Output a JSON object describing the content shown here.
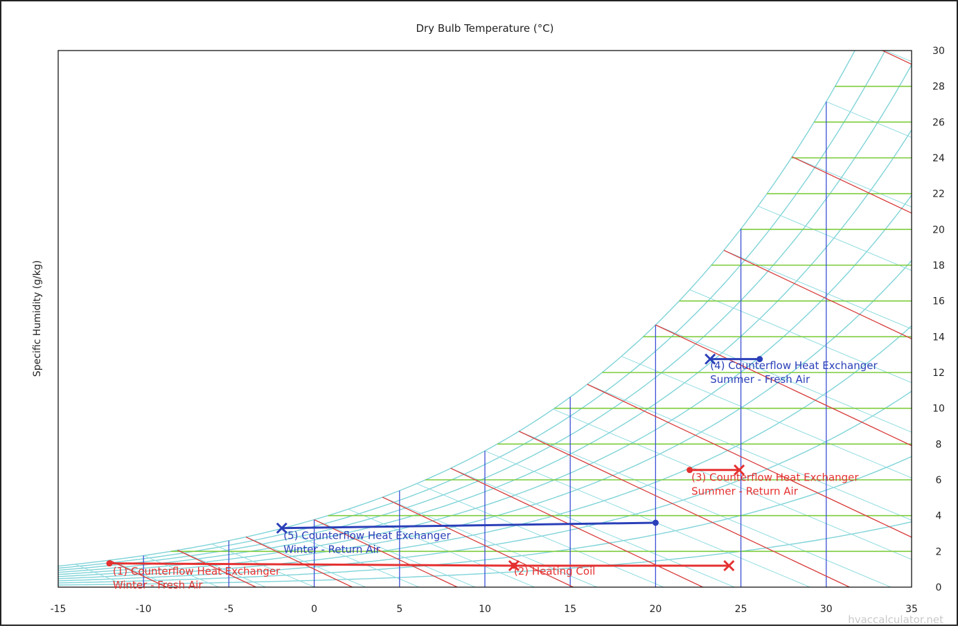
{
  "chart_data": {
    "type": "scatter",
    "subtype": "psychrometric",
    "title": "Dry Bulb Temperature (°C)",
    "xlabel": "",
    "ylabel": "Specific Humidity (g/kg)",
    "xlim": [
      -15,
      35
    ],
    "ylim": [
      0,
      30
    ],
    "x_ticks": [
      "-15",
      "-10",
      "-5",
      "0",
      "5",
      "10",
      "15",
      "20",
      "25",
      "30",
      "35"
    ],
    "y_ticks": [
      "0",
      "2",
      "4",
      "6",
      "8",
      "10",
      "12",
      "14",
      "16",
      "18",
      "20",
      "22",
      "24",
      "26",
      "28",
      "30"
    ],
    "x_tick_values": [
      -15,
      -10,
      -5,
      0,
      5,
      10,
      15,
      20,
      25,
      30,
      35
    ],
    "y_tick_values": [
      0,
      2,
      4,
      6,
      8,
      10,
      12,
      14,
      16,
      18,
      20,
      22,
      24,
      26,
      28,
      30
    ],
    "grid": {
      "dry_bulb_lines_c": [
        -10,
        -5,
        0,
        5,
        10,
        15,
        20,
        25,
        30
      ],
      "humidity_lines_gkg": [
        2,
        4,
        6,
        8,
        10,
        12,
        14,
        16,
        18,
        20,
        22,
        24,
        26,
        28
      ],
      "relative_humidity_curves_pct": [
        10,
        20,
        30,
        40,
        50,
        60,
        70,
        80,
        90,
        100
      ],
      "enthalpy_lines_x_at_saturation": [
        -12,
        -8,
        -4,
        0,
        4,
        8,
        12,
        16,
        20,
        24,
        28,
        32
      ]
    },
    "processes": [
      {
        "label": [
          "(1) Counterflow Heat Exchanger",
          "Winter - Fresh Air"
        ],
        "start": [
          -12.0,
          1.33
        ],
        "end": [
          11.7,
          1.2
        ],
        "color": "#e53030",
        "end_marker": "x",
        "label_at": [
          -11.8,
          0.7
        ]
      },
      {
        "label": [
          "(2) Heating Coil"
        ],
        "start": [
          11.7,
          1.2
        ],
        "end": [
          24.3,
          1.2
        ],
        "color": "#e53030",
        "end_marker": "x",
        "label_at": [
          11.7,
          0.7
        ]
      },
      {
        "label": [
          "(3) Counterflow Heat Exchanger",
          "Summer - Return Air"
        ],
        "start": [
          22.0,
          6.55
        ],
        "end": [
          24.9,
          6.55
        ],
        "color": "#e53030",
        "end_marker": "x",
        "label_at": [
          22.1,
          5.95
        ]
      },
      {
        "label": [
          "(4) Counterflow Heat Exchanger",
          "Summer - Fresh Air"
        ],
        "start": [
          26.1,
          12.75
        ],
        "end": [
          23.2,
          12.75
        ],
        "color": "#2a3fb8",
        "end_marker": "x",
        "label_at": [
          23.2,
          12.2
        ]
      },
      {
        "label": [
          "(5) Counterflow Heat Exchanger",
          "Winter - Return Air"
        ],
        "start": [
          20.0,
          3.6
        ],
        "end": [
          -1.9,
          3.3
        ],
        "color": "#2a3fb8",
        "end_marker": "x",
        "label_at": [
          -1.8,
          2.7
        ]
      }
    ],
    "watermark": "hvaccalculator.net"
  }
}
